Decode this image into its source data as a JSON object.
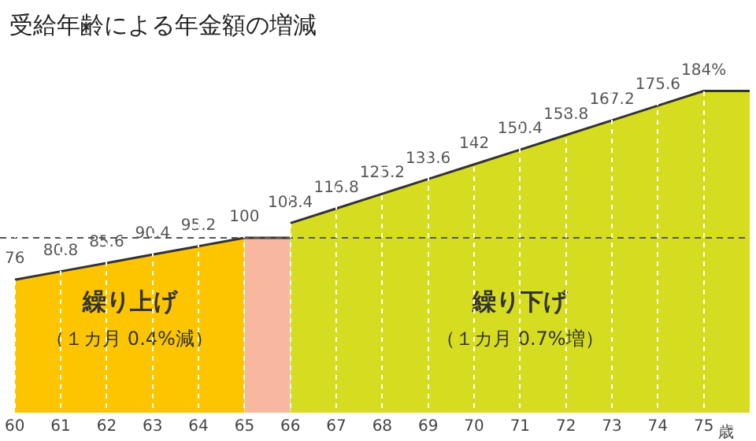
{
  "chart_data": {
    "type": "area",
    "title": "受給年齢による年金額の増減",
    "xlabel": "歳",
    "xlim": [
      60,
      76
    ],
    "xticks": [
      60,
      61,
      62,
      63,
      64,
      65,
      66,
      67,
      68,
      69,
      70,
      71,
      72,
      73,
      74,
      75
    ],
    "grid": "x",
    "legend": false,
    "tick_labels": "x",
    "series": [
      {
        "color": "#fcc500",
        "x": [
          60,
          61,
          62,
          63,
          64,
          65
        ],
        "values": [
          76,
          80.8,
          85.6,
          90.4,
          95.2,
          100
        ],
        "value_labels": [
          "76",
          "80.8",
          "85.6",
          "90.4",
          "95.2",
          "100"
        ]
      },
      {
        "color": "#f8b8a0",
        "x": [
          65,
          66
        ],
        "values": [
          100,
          100
        ],
        "value_labels": [
          null,
          null
        ]
      },
      {
        "color": "#d6dc20",
        "x": [
          66,
          67,
          68,
          69,
          70,
          71,
          72,
          73,
          74,
          75,
          76
        ],
        "values": [
          108.4,
          116.8,
          125.2,
          133.6,
          142,
          150.4,
          158.8,
          167.2,
          175.6,
          184,
          184
        ],
        "value_labels": [
          "108.4",
          "116.8",
          "125.2",
          "133.6",
          "142",
          "150.4",
          "158.8",
          "167.2",
          "175.6",
          "184%",
          null
        ]
      }
    ],
    "ref_lines": [
      {
        "axis": "y",
        "value": 100,
        "color": "#555555",
        "line_style": "dashed"
      }
    ],
    "annotations": [
      "繰り上げ",
      "（１カ月 0.4%減）",
      "繰り下げ",
      "（１カ月 0.7%増）"
    ]
  }
}
